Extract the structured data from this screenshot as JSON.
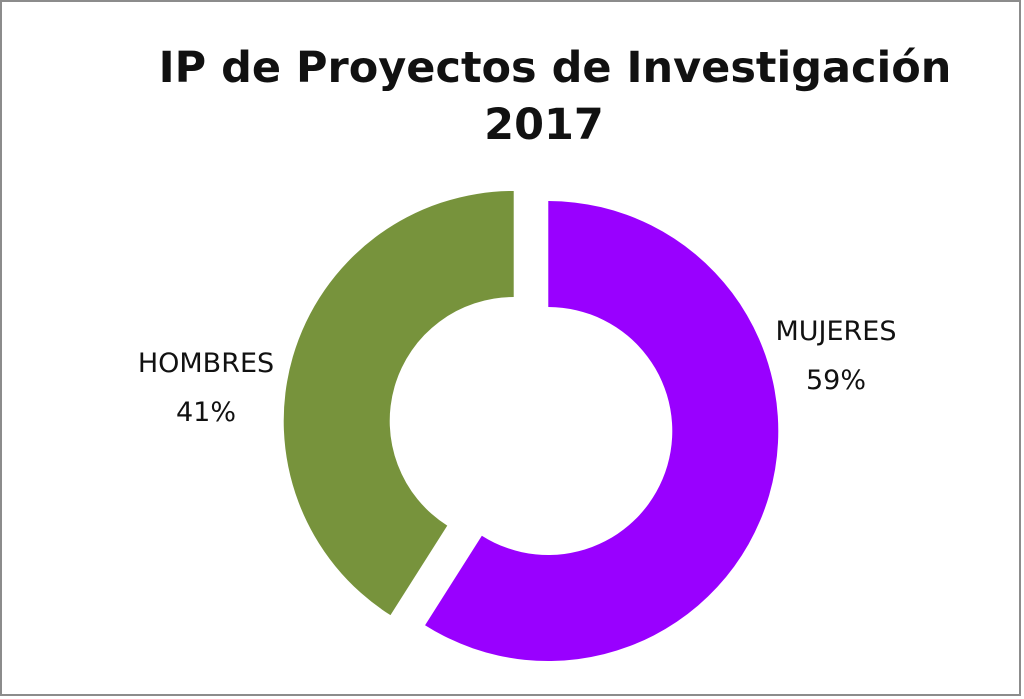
{
  "chart_data": {
    "type": "pie",
    "variant": "donut",
    "title_lines": [
      "IP de Proyectos de Investigación",
      "2017"
    ],
    "slices": [
      {
        "name": "MUJERES",
        "percent_label": "59%",
        "value": 59,
        "color": "#9900ff"
      },
      {
        "name": "HOMBRES",
        "percent_label": "41%",
        "value": 41,
        "color": "#77933c"
      }
    ],
    "legend": "none",
    "data_labels": "outside"
  }
}
